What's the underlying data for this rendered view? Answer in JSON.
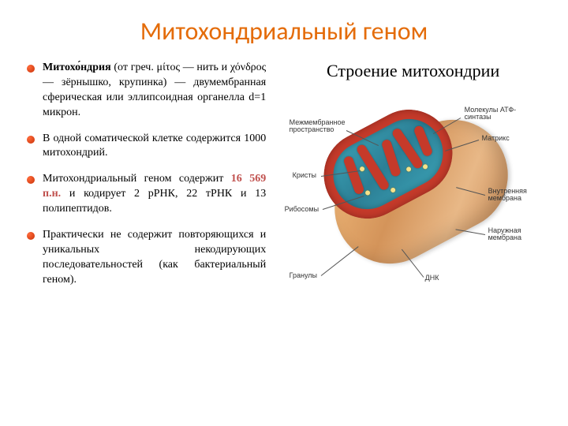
{
  "title": {
    "text": "Митохондриальный геном",
    "color": "#e46c0a",
    "fontsize": 32
  },
  "subtitle": {
    "text": "Строение митохондрии",
    "fontsize": 22
  },
  "bullets": [
    {
      "prefix_bold": "Митохо́ндрия",
      "rest": " (от греч. μίτος — нить и χόνδρος — зёрнышко, крупинка) — двумембранная сферическая или эллипсоидная органелла           d=1 микрон."
    },
    {
      "text": "В одной соматической клетке содержится 1000 митохондрий."
    },
    {
      "pre": "Митохондриальный геном содержит ",
      "highlight": "16 569 п.н.",
      "post": " и кодирует 2 рРНК, 22 тРНК и 13 полипептидов."
    },
    {
      "text": "Практически не содержит повторяющихся и уникальных некодирующих последовательностей (как бактериальный геном)."
    }
  ],
  "bullet_style": {
    "marker_color_a": "#ff6a3a",
    "marker_color_b": "#c93208",
    "fontsize": 14,
    "highlight_color": "#c0504d"
  },
  "diagram": {
    "type": "infographic",
    "shape": "ellipsoid-cutaway",
    "rotation_deg": -28,
    "outer_membrane_color": "#d4945a",
    "outer_highlight": "#f0b97a",
    "inner_membrane_color": "#c53a2a",
    "matrix_color": "#2c7f95",
    "matrix_highlight": "#3aa0b4",
    "granule_color": "#f5e28a",
    "label_fontsize": 9,
    "label_color": "#333333",
    "leader_color": "#555555",
    "labels": {
      "intermembrane": "Межмембранное пространство",
      "cristae": "Кристы",
      "ribosomes": "Рибосомы",
      "granules": "Гранулы",
      "atp": "Молекулы АТФ-синтазы",
      "matrix": "Матрикс",
      "inner": "Внутренняя мембрана",
      "outer": "Наружная мембрана",
      "dna": "ДНК"
    }
  }
}
